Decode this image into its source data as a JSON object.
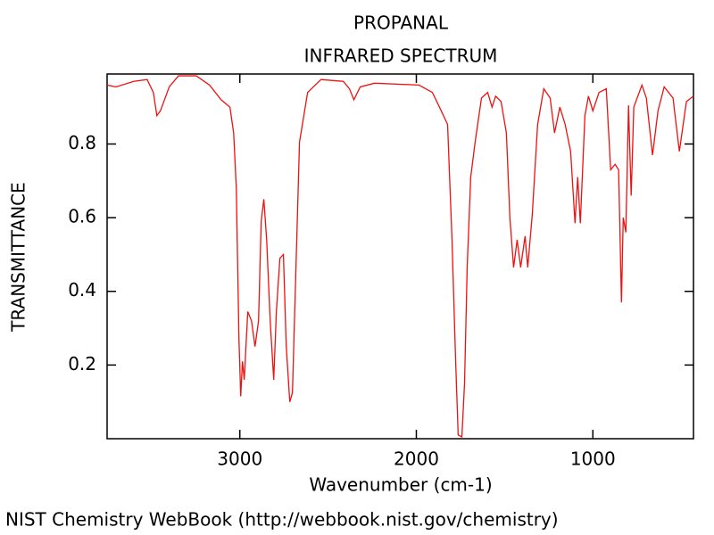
{
  "chart_data": {
    "type": "line",
    "title": "PROPANAL",
    "subtitle": "INFRARED SPECTRUM",
    "x_label": "Wavenumber (cm-1)",
    "y_label": "TRANSMITTANCE",
    "source": "NIST Chemistry WebBook (http://webbook.nist.gov/chemistry)",
    "color": "#ee1111",
    "xlim": [
      3752,
      430
    ],
    "ylim": [
      0.0,
      0.99
    ],
    "xticks": [
      3000,
      2000,
      1000
    ],
    "yticks": [
      0.2,
      0.4,
      0.6,
      0.8
    ],
    "x": [
      3752,
      3702,
      3601,
      3525,
      3490,
      3470,
      3450,
      3400,
      3348,
      3247,
      3172,
      3106,
      3056,
      3035,
      3020,
      3005,
      2995,
      2985,
      2975,
      2955,
      2934,
      2914,
      2894,
      2879,
      2864,
      2848,
      2828,
      2808,
      2793,
      2773,
      2753,
      2737,
      2717,
      2702,
      2682,
      2662,
      2616,
      2540,
      2414,
      2379,
      2354,
      2318,
      2237,
      1985,
      1909,
      1859,
      1823,
      1798,
      1778,
      1763,
      1742,
      1727,
      1712,
      1692,
      1667,
      1631,
      1596,
      1571,
      1551,
      1520,
      1490,
      1470,
      1449,
      1429,
      1409,
      1384,
      1369,
      1343,
      1313,
      1278,
      1242,
      1217,
      1187,
      1157,
      1126,
      1101,
      1086,
      1071,
      1045,
      1025,
      1000,
      965,
      924,
      899,
      874,
      854,
      838,
      828,
      813,
      798,
      783,
      768,
      722,
      697,
      662,
      631,
      596,
      546,
      510,
      470,
      430
    ],
    "values": [
      0.96,
      0.955,
      0.97,
      0.975,
      0.94,
      0.877,
      0.89,
      0.955,
      0.985,
      0.985,
      0.96,
      0.92,
      0.9,
      0.83,
      0.68,
      0.27,
      0.115,
      0.21,
      0.16,
      0.345,
      0.32,
      0.25,
      0.32,
      0.59,
      0.65,
      0.54,
      0.32,
      0.16,
      0.345,
      0.49,
      0.5,
      0.25,
      0.1,
      0.125,
      0.465,
      0.805,
      0.94,
      0.975,
      0.97,
      0.95,
      0.92,
      0.955,
      0.965,
      0.96,
      0.94,
      0.89,
      0.853,
      0.54,
      0.22,
      0.01,
      0.005,
      0.15,
      0.465,
      0.71,
      0.805,
      0.925,
      0.94,
      0.9,
      0.93,
      0.915,
      0.83,
      0.6,
      0.465,
      0.54,
      0.465,
      0.55,
      0.465,
      0.61,
      0.853,
      0.95,
      0.925,
      0.83,
      0.9,
      0.853,
      0.78,
      0.585,
      0.71,
      0.585,
      0.877,
      0.93,
      0.89,
      0.94,
      0.95,
      0.73,
      0.745,
      0.73,
      0.37,
      0.6,
      0.56,
      0.905,
      0.66,
      0.9,
      0.96,
      0.925,
      0.77,
      0.89,
      0.955,
      0.925,
      0.78,
      0.915,
      0.93
    ]
  }
}
